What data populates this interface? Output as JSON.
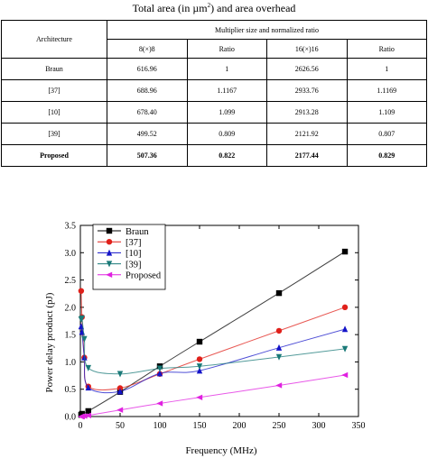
{
  "caption": {
    "text_before": "Total area (in ",
    "unit": "µm",
    "sup": "2",
    "text_after": ") and area overhead"
  },
  "table": {
    "group_header": "Multiplier size and normalized ratio",
    "architecture_header": "Architecture",
    "columns": [
      "8(×)8",
      "Ratio",
      "16(×)16",
      "Ratio"
    ],
    "rows": [
      {
        "arch": "Braun",
        "cells": [
          "616.96",
          "1",
          "2626.56",
          "1"
        ]
      },
      {
        "arch": "[37]",
        "cells": [
          "688.96",
          "1.1167",
          "2933.76",
          "1.1169"
        ]
      },
      {
        "arch": "[10]",
        "cells": [
          "678.40",
          "1.099",
          "2913.28",
          "1.109"
        ]
      },
      {
        "arch": "[39]",
        "cells": [
          "499.52",
          "0.809",
          "2121.92",
          "0.807"
        ]
      },
      {
        "arch": "Proposed",
        "cells": [
          "507.36",
          "0.822",
          "2177.44",
          "0.829"
        ]
      }
    ]
  },
  "chart_data": {
    "type": "line",
    "title": "",
    "xlabel": "Frequency (MHz)",
    "ylabel": "Power delay product (pJ)",
    "xlim": [
      0,
      350
    ],
    "ylim": [
      0.0,
      3.5
    ],
    "xticks": [
      0,
      50,
      100,
      150,
      200,
      250,
      300,
      350
    ],
    "yticks": [
      "0.0",
      "0.5",
      "1.0",
      "1.5",
      "2.0",
      "2.5",
      "3.0",
      "3.5"
    ],
    "grid": false,
    "legend": "top-left",
    "series": [
      {
        "name": "Braun",
        "color": "#000000",
        "marker": "square",
        "x": [
          1,
          2,
          10,
          50,
          100,
          150,
          250,
          333
        ],
        "y": [
          0.03,
          0.05,
          0.1,
          0.45,
          0.92,
          1.37,
          2.26,
          3.02
        ]
      },
      {
        "name": "[37]",
        "color": "#e0201a",
        "marker": "circle",
        "x": [
          1,
          2,
          5,
          10,
          50,
          100,
          150,
          250,
          333
        ],
        "y": [
          2.3,
          1.82,
          1.08,
          0.55,
          0.52,
          0.78,
          1.05,
          1.57,
          2.0
        ]
      },
      {
        "name": "[10]",
        "color": "#1414c8",
        "marker": "triangle-up",
        "x": [
          1,
          2,
          5,
          10,
          50,
          100,
          150,
          250,
          333
        ],
        "y": [
          1.65,
          1.55,
          1.08,
          0.53,
          0.46,
          0.79,
          0.84,
          1.26,
          1.6
        ]
      },
      {
        "name": "[39]",
        "color": "#1a7a78",
        "marker": "triangle-down",
        "x": [
          1,
          2,
          5,
          10,
          50,
          100,
          150,
          250,
          333
        ],
        "y": [
          1.78,
          1.8,
          1.42,
          0.89,
          0.78,
          0.88,
          0.92,
          1.09,
          1.24
        ]
      },
      {
        "name": "Proposed",
        "color": "#e020e0",
        "marker": "triangle-left",
        "x": [
          1,
          2,
          5,
          10,
          50,
          100,
          150,
          250,
          333
        ],
        "y": [
          0.0,
          0.0,
          0.01,
          0.02,
          0.12,
          0.24,
          0.35,
          0.57,
          0.76
        ]
      }
    ]
  }
}
